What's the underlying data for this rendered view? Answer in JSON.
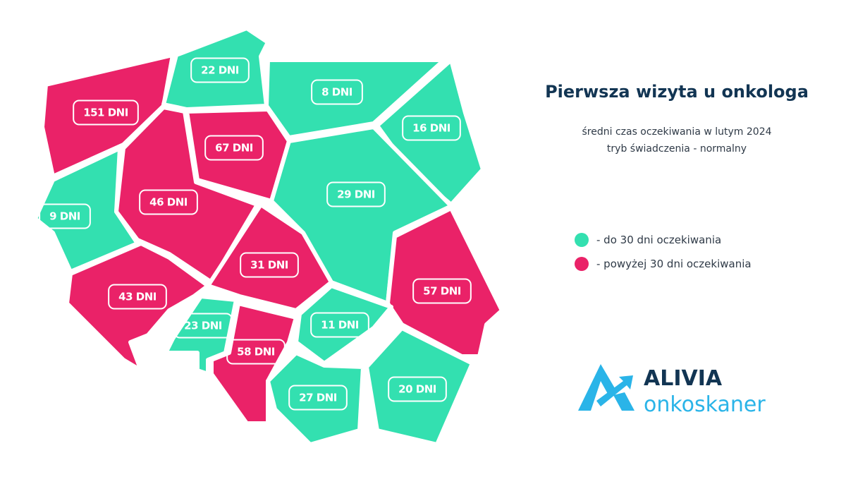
{
  "title": "Pierwsza wizyta u onkologa",
  "subtitle": [
    "średni czas oczekiwania w lutym 2024",
    "tryb świadczenia - normalny"
  ],
  "legend": [
    {
      "color": "#33e0b0",
      "label": "- do 30 dni oczekiwania"
    },
    {
      "color": "#ea2268",
      "label": "- powyżej 30 dni oczekiwania"
    }
  ],
  "regions": [
    {
      "label": "151 DNI",
      "color": "#ea2268"
    },
    {
      "label": "22 DNI",
      "color": "#33e0b0"
    },
    {
      "label": "8 DNI",
      "color": "#33e0b0"
    },
    {
      "label": "16 DNI",
      "color": "#33e0b0"
    },
    {
      "label": "67 DNI",
      "color": "#ea2268"
    },
    {
      "label": "29 DNI",
      "color": "#33e0b0"
    },
    {
      "label": "9 DNI",
      "color": "#33e0b0"
    },
    {
      "label": "46 DNI",
      "color": "#ea2268"
    },
    {
      "label": "31 DNI",
      "color": "#ea2268"
    },
    {
      "label": "57 DNI",
      "color": "#ea2268"
    },
    {
      "label": "43 DNI",
      "color": "#ea2268"
    },
    {
      "label": "23 DNI",
      "color": "#33e0b0"
    },
    {
      "label": "58 DNI",
      "color": "#ea2268"
    },
    {
      "label": "11 DNI",
      "color": "#33e0b0"
    },
    {
      "label": "27 DNI",
      "color": "#33e0b0"
    },
    {
      "label": "20 DNI",
      "color": "#33e0b0"
    }
  ],
  "logo": {
    "brand": "ALIVIA",
    "product": "onkoskaner"
  }
}
